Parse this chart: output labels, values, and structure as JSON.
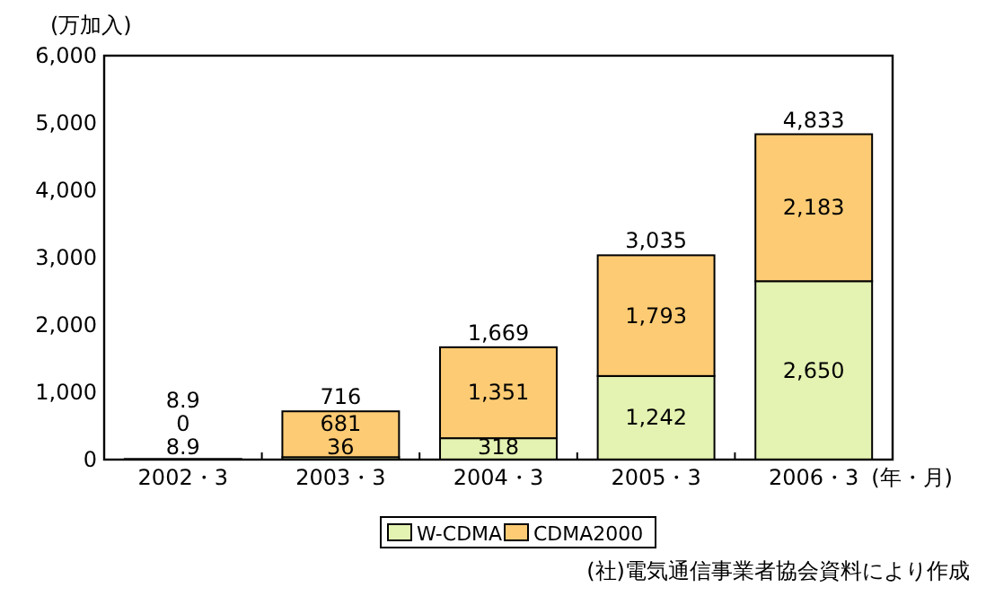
{
  "chart_data": {
    "type": "bar",
    "stacked": true,
    "ylabel": "(万加入)",
    "xlabel": "(年・月)",
    "categories": [
      "2002・3",
      "2003・3",
      "2004・3",
      "2005・3",
      "2006・3"
    ],
    "series": [
      {
        "name": "W-CDMA",
        "color": "#e4f2b2",
        "values": [
          8.9,
          36,
          318,
          1242,
          2650
        ],
        "value_labels": [
          "8.9",
          "36",
          "318",
          "1,242",
          "2,650"
        ]
      },
      {
        "name": "CDMA2000",
        "color": "#fccb74",
        "values": [
          0,
          681,
          1351,
          1793,
          2183
        ],
        "value_labels": [
          "0",
          "681",
          "1,351",
          "1,793",
          "2,183"
        ]
      }
    ],
    "totals": [
      "8.9",
      "716",
      "1,669",
      "3,035",
      "4,833"
    ],
    "ylim": [
      0,
      6000
    ],
    "yticks": [
      {
        "value": 0,
        "label": "0"
      },
      {
        "value": 1000,
        "label": "1,000"
      },
      {
        "value": 2000,
        "label": "2,000"
      },
      {
        "value": 3000,
        "label": "3,000"
      },
      {
        "value": 4000,
        "label": "4,000"
      },
      {
        "value": 5000,
        "label": "5,000"
      },
      {
        "value": 6000,
        "label": "6,000"
      }
    ],
    "grid": false,
    "legend": "bottom",
    "annotations": [
      "(社)電気通信事業者協会資料により作成"
    ]
  }
}
